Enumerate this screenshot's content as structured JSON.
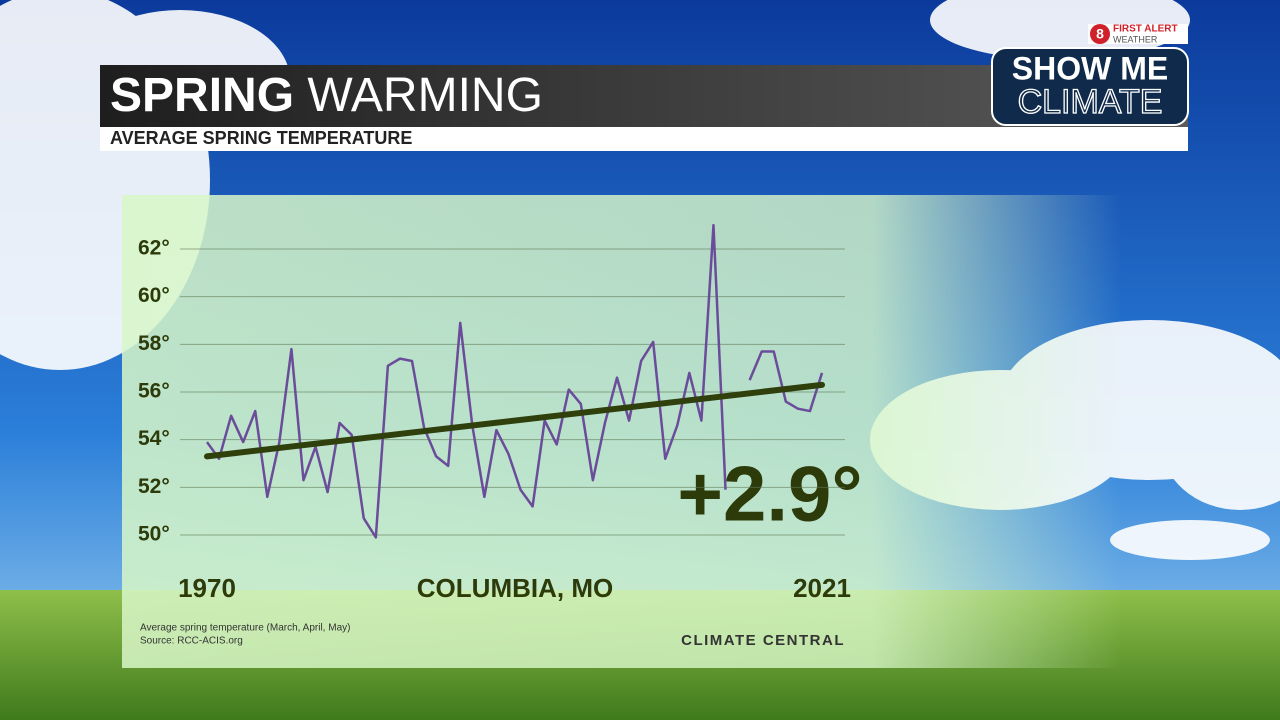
{
  "chart_data": {
    "type": "line",
    "title_bold": "SPRING",
    "title_light": "WARMING",
    "subtitle": "AVERAGE SPRING TEMPERATURE",
    "location": "COLUMBIA, MO",
    "annotation": "+2.9°",
    "x": [
      1970,
      1971,
      1972,
      1973,
      1974,
      1975,
      1976,
      1977,
      1978,
      1979,
      1980,
      1981,
      1982,
      1983,
      1984,
      1985,
      1986,
      1987,
      1988,
      1989,
      1990,
      1991,
      1992,
      1993,
      1994,
      1995,
      1996,
      1997,
      1998,
      1999,
      2000,
      2001,
      2002,
      2003,
      2004,
      2005,
      2006,
      2007,
      2008,
      2009,
      2010,
      2011,
      2012,
      2013,
      2014,
      2015,
      2016,
      2017,
      2018,
      2019,
      2020,
      2021
    ],
    "series": [
      {
        "color": "#6b4c9a",
        "values": [
          53.9,
          53.2,
          55.0,
          53.9,
          55.2,
          51.6,
          53.9,
          57.8,
          52.3,
          53.7,
          51.8,
          54.7,
          54.2,
          50.7,
          49.9,
          57.1,
          57.4,
          57.3,
          54.5,
          53.3,
          52.9,
          58.9,
          54.6,
          51.6,
          54.4,
          53.4,
          51.9,
          51.2,
          54.8,
          53.8,
          56.1,
          55.5,
          52.3,
          54.7,
          56.6,
          54.8,
          57.3,
          58.1,
          53.2,
          54.6,
          56.8,
          54.8,
          63.0,
          51.9,
          null,
          56.5,
          57.7,
          57.7,
          55.6,
          55.3,
          55.2,
          56.8
        ]
      }
    ],
    "trend": {
      "color": "#2f400d",
      "x": [
        1970,
        2021
      ],
      "values": [
        53.3,
        56.3
      ]
    },
    "xlim": [
      1970,
      2021
    ],
    "xticks": [
      1970,
      2021
    ],
    "ylim": [
      50,
      62
    ],
    "yticks": [
      {
        "value": 50,
        "label": "50°"
      },
      {
        "value": 52,
        "label": "52°"
      },
      {
        "value": 54,
        "label": "54°"
      },
      {
        "value": 56,
        "label": "56°"
      },
      {
        "value": 58,
        "label": "58°"
      },
      {
        "value": 60,
        "label": "60°"
      },
      {
        "value": 62,
        "label": "62°"
      }
    ],
    "grid": true,
    "footnote": "Average spring temperature (March, April, May)",
    "source": "Source: RCC-ACIS.org",
    "credit": "CLIMATE   CENTRAL"
  },
  "branding": {
    "channel": "8",
    "first_alert": "FIRST ALERT",
    "weather": "WEATHER",
    "show_me": "SHOW ME",
    "climate": "CLIMATE"
  }
}
